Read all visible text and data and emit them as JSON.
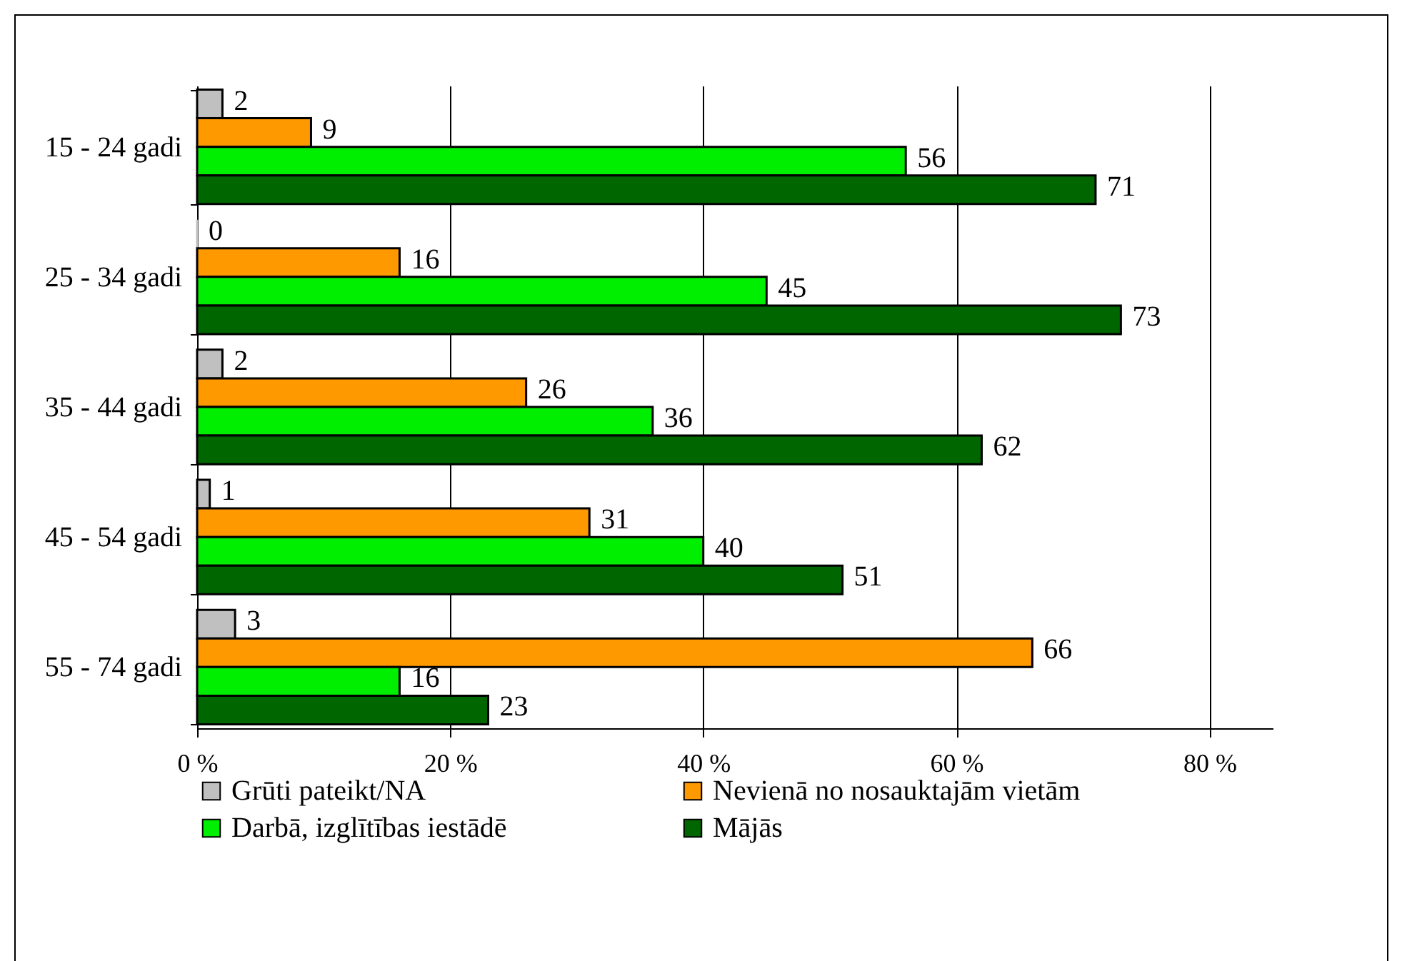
{
  "chart_data": {
    "type": "bar",
    "orientation": "horizontal",
    "categories": [
      "15 - 24 gadi",
      "25 - 34 gadi",
      "35 - 44 gadi",
      "45 - 54 gadi",
      "55 - 74 gadi"
    ],
    "series": [
      {
        "name": "Grūti pateikt/NA",
        "color": "#c0c0c0",
        "values": [
          2,
          0,
          2,
          1,
          3
        ]
      },
      {
        "name": "Nevienā no nosauktajām vietām",
        "color": "#ff9900",
        "values": [
          9,
          16,
          26,
          31,
          66
        ]
      },
      {
        "name": "Darbā, izglītības iestādē",
        "color": "#00ee00",
        "values": [
          56,
          45,
          36,
          40,
          16
        ]
      },
      {
        "name": "Mājās",
        "color": "#006600",
        "values": [
          71,
          73,
          62,
          51,
          23
        ]
      }
    ],
    "xlim": [
      0,
      85
    ],
    "xticks": [
      {
        "value": 0,
        "label": "0 %"
      },
      {
        "value": 20,
        "label": "20 %"
      },
      {
        "value": 40,
        "label": "40 %"
      },
      {
        "value": 60,
        "label": "60 %"
      },
      {
        "value": 80,
        "label": "80 %"
      }
    ],
    "grid": "x",
    "legend": "bottom",
    "data_labels": true
  }
}
